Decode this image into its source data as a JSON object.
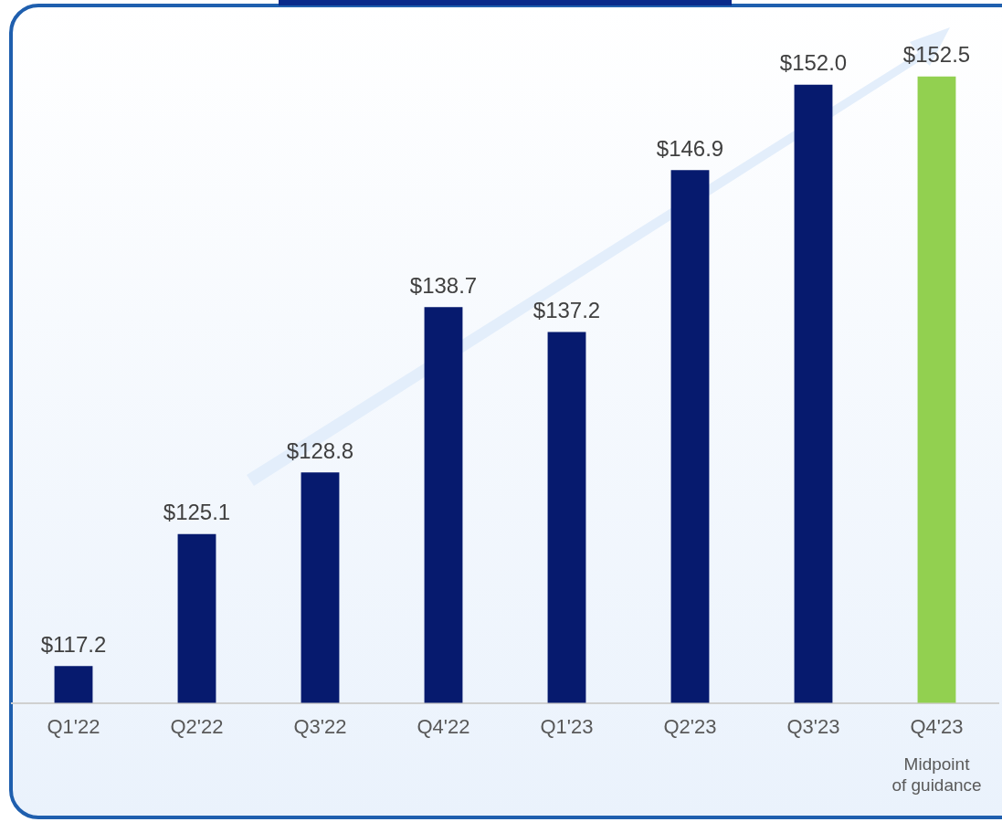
{
  "chart_data": {
    "type": "bar",
    "categories": [
      "Q1'22",
      "Q2'22",
      "Q3'22",
      "Q4'22",
      "Q1'23",
      "Q2'23",
      "Q3'23",
      "Q4'23"
    ],
    "values": [
      117.2,
      125.1,
      128.8,
      138.7,
      137.2,
      146.9,
      152.0,
      152.5
    ],
    "colors": [
      "#061a6e",
      "#061a6e",
      "#061a6e",
      "#061a6e",
      "#061a6e",
      "#061a6e",
      "#061a6e",
      "#92d050"
    ],
    "value_labels": [
      "$117.2",
      "$125.1",
      "$128.8",
      "$138.7",
      "$137.2",
      "$146.9",
      "$152.0",
      "$152.5"
    ],
    "tick_labels": "x",
    "grid": false,
    "legend": false,
    "annotations": [
      "Midpoint of guidance"
    ]
  }
}
